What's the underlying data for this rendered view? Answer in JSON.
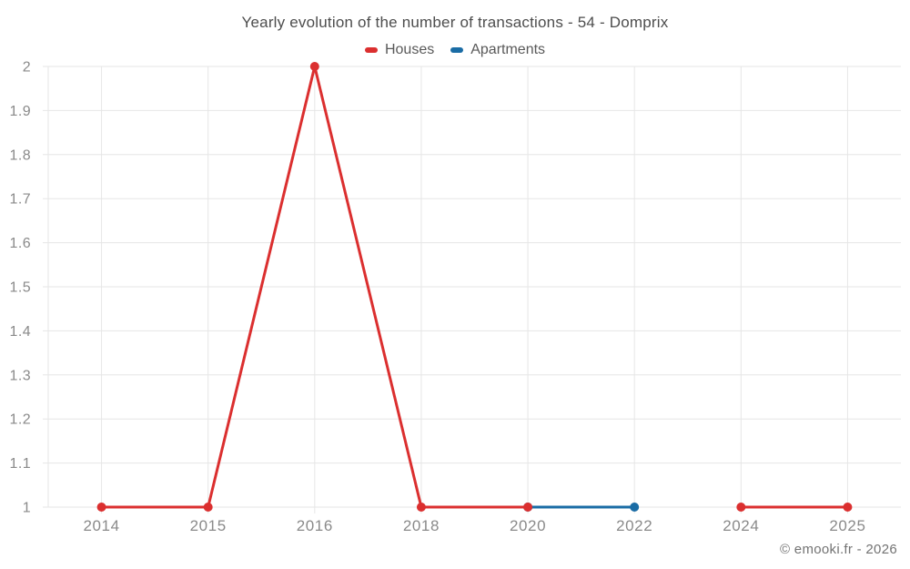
{
  "header": {
    "title": "Yearly evolution of the number of transactions - 54 - Domprix"
  },
  "footer": {
    "copyright": "© emooki.fr - 2026"
  },
  "colors": {
    "houses": "#db2f2f",
    "apartments": "#1a6ca5",
    "grid": "#e6e6e6",
    "axis_text": "#8a8a8a",
    "title_text": "#4d4d4d",
    "legend_text": "#595959"
  },
  "chart_data": {
    "type": "line",
    "title": "Yearly evolution of the number of transactions - 54 - Domprix",
    "categories": [
      "2014",
      "2015",
      "2016",
      "2018",
      "2020",
      "2022",
      "2024",
      "2025"
    ],
    "series": [
      {
        "name": "Houses",
        "color": "#db2f2f",
        "values": [
          1,
          1,
          2,
          1,
          1,
          null,
          1,
          1
        ]
      },
      {
        "name": "Apartments",
        "color": "#1a6ca5",
        "values": [
          null,
          null,
          null,
          null,
          1,
          1,
          null,
          null
        ]
      }
    ],
    "xlabel": "",
    "ylabel": "",
    "ylim": [
      1,
      2
    ],
    "y_ticks": [
      "1",
      "1.1",
      "1.2",
      "1.3",
      "1.4",
      "1.5",
      "1.6",
      "1.7",
      "1.8",
      "1.9",
      "2"
    ],
    "grid": true,
    "legend_position": "top",
    "marker_radius": 5,
    "line_width": 3
  }
}
